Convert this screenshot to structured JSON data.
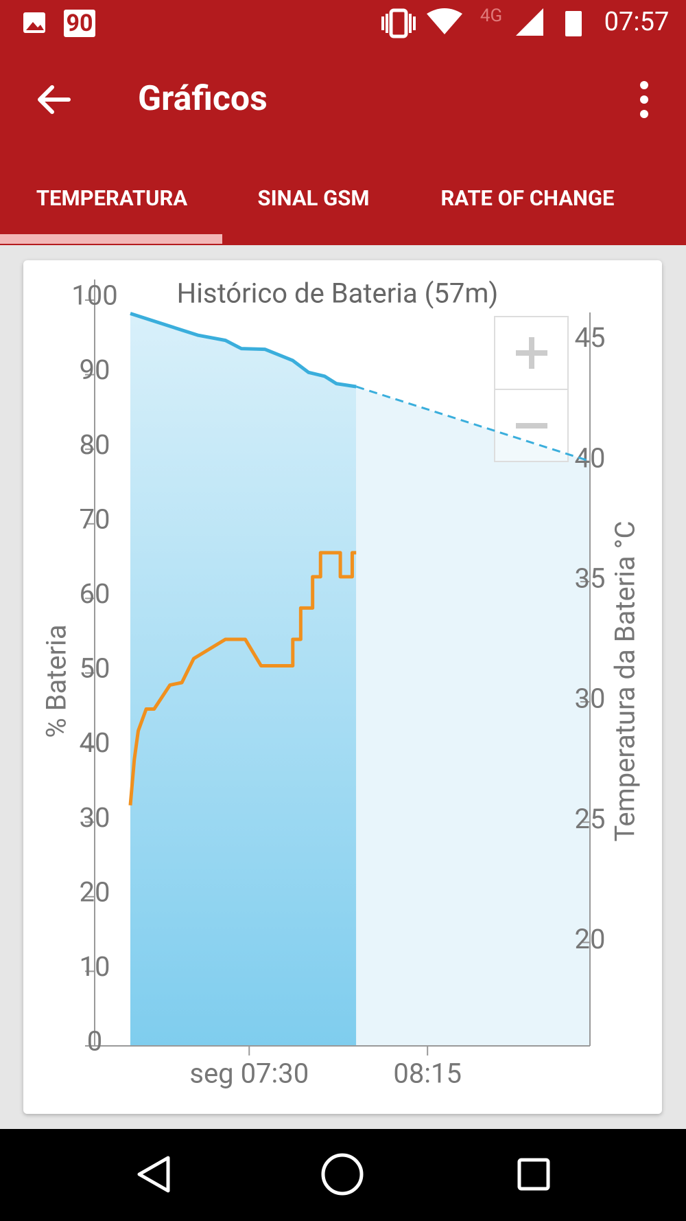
{
  "status_bar": {
    "badge": "90",
    "network": "4G",
    "time": "07:57"
  },
  "toolbar": {
    "title": "Gráficos"
  },
  "tabs": [
    "TEMPERATURA",
    "SINAL GSM",
    "RATE OF CHANGE"
  ],
  "chart_data": {
    "type": "line",
    "title": "Histórico de Bateria (57m)",
    "y_label": "% Bateria",
    "y2_label": "Temperatura da Bateria °C",
    "xlim": [
      "06:51",
      "08:56"
    ],
    "xticks": [
      {
        "value": "07:30",
        "label": "seg 07:30"
      },
      {
        "value": "08:15",
        "label": "08:15"
      }
    ],
    "ylim": [
      0,
      100
    ],
    "yticks": [
      0,
      10,
      20,
      30,
      40,
      50,
      60,
      70,
      80,
      90,
      100
    ],
    "y2lim": [
      15.7,
      46.7
    ],
    "y2ticks": [
      20,
      25,
      30,
      35,
      40,
      45
    ],
    "series": [
      {
        "color": "#3aaedc",
        "fill": "#7fcdee",
        "x": [
          "07:00",
          "07:17",
          "07:24",
          "07:28",
          "07:34",
          "07:41",
          "07:45",
          "07:49",
          "07:52",
          "07:57"
        ],
        "values": [
          98.2,
          95.3,
          94.6,
          93.5,
          93.4,
          91.9,
          90.3,
          89.8,
          88.8,
          88.4
        ]
      },
      {
        "color": "#3aaedc",
        "fill": "#e8f5fb",
        "style": "dashed",
        "x": [
          "07:57",
          "08:56"
        ],
        "values": [
          88.4,
          78.4
        ]
      },
      {
        "color": "#f0901e",
        "axis": "y2",
        "x": [
          "07:00",
          "07:01",
          "07:02",
          "07:04",
          "07:06",
          "07:10",
          "07:13",
          "07:16",
          "07:24",
          "07:29",
          "07:33",
          "07:41",
          "07:41",
          "07:43",
          "07:43",
          "07:46",
          "07:46",
          "07:48",
          "07:48",
          "07:53",
          "07:53",
          "07:56",
          "07:56",
          "07:57"
        ],
        "values": [
          25.7,
          27.6,
          28.8,
          29.7,
          29.7,
          30.7,
          30.8,
          31.8,
          32.6,
          32.6,
          31.5,
          31.5,
          32.6,
          32.6,
          33.9,
          33.9,
          35.2,
          35.2,
          36.2,
          36.2,
          35.2,
          35.2,
          36.2,
          36.2
        ]
      }
    ]
  }
}
